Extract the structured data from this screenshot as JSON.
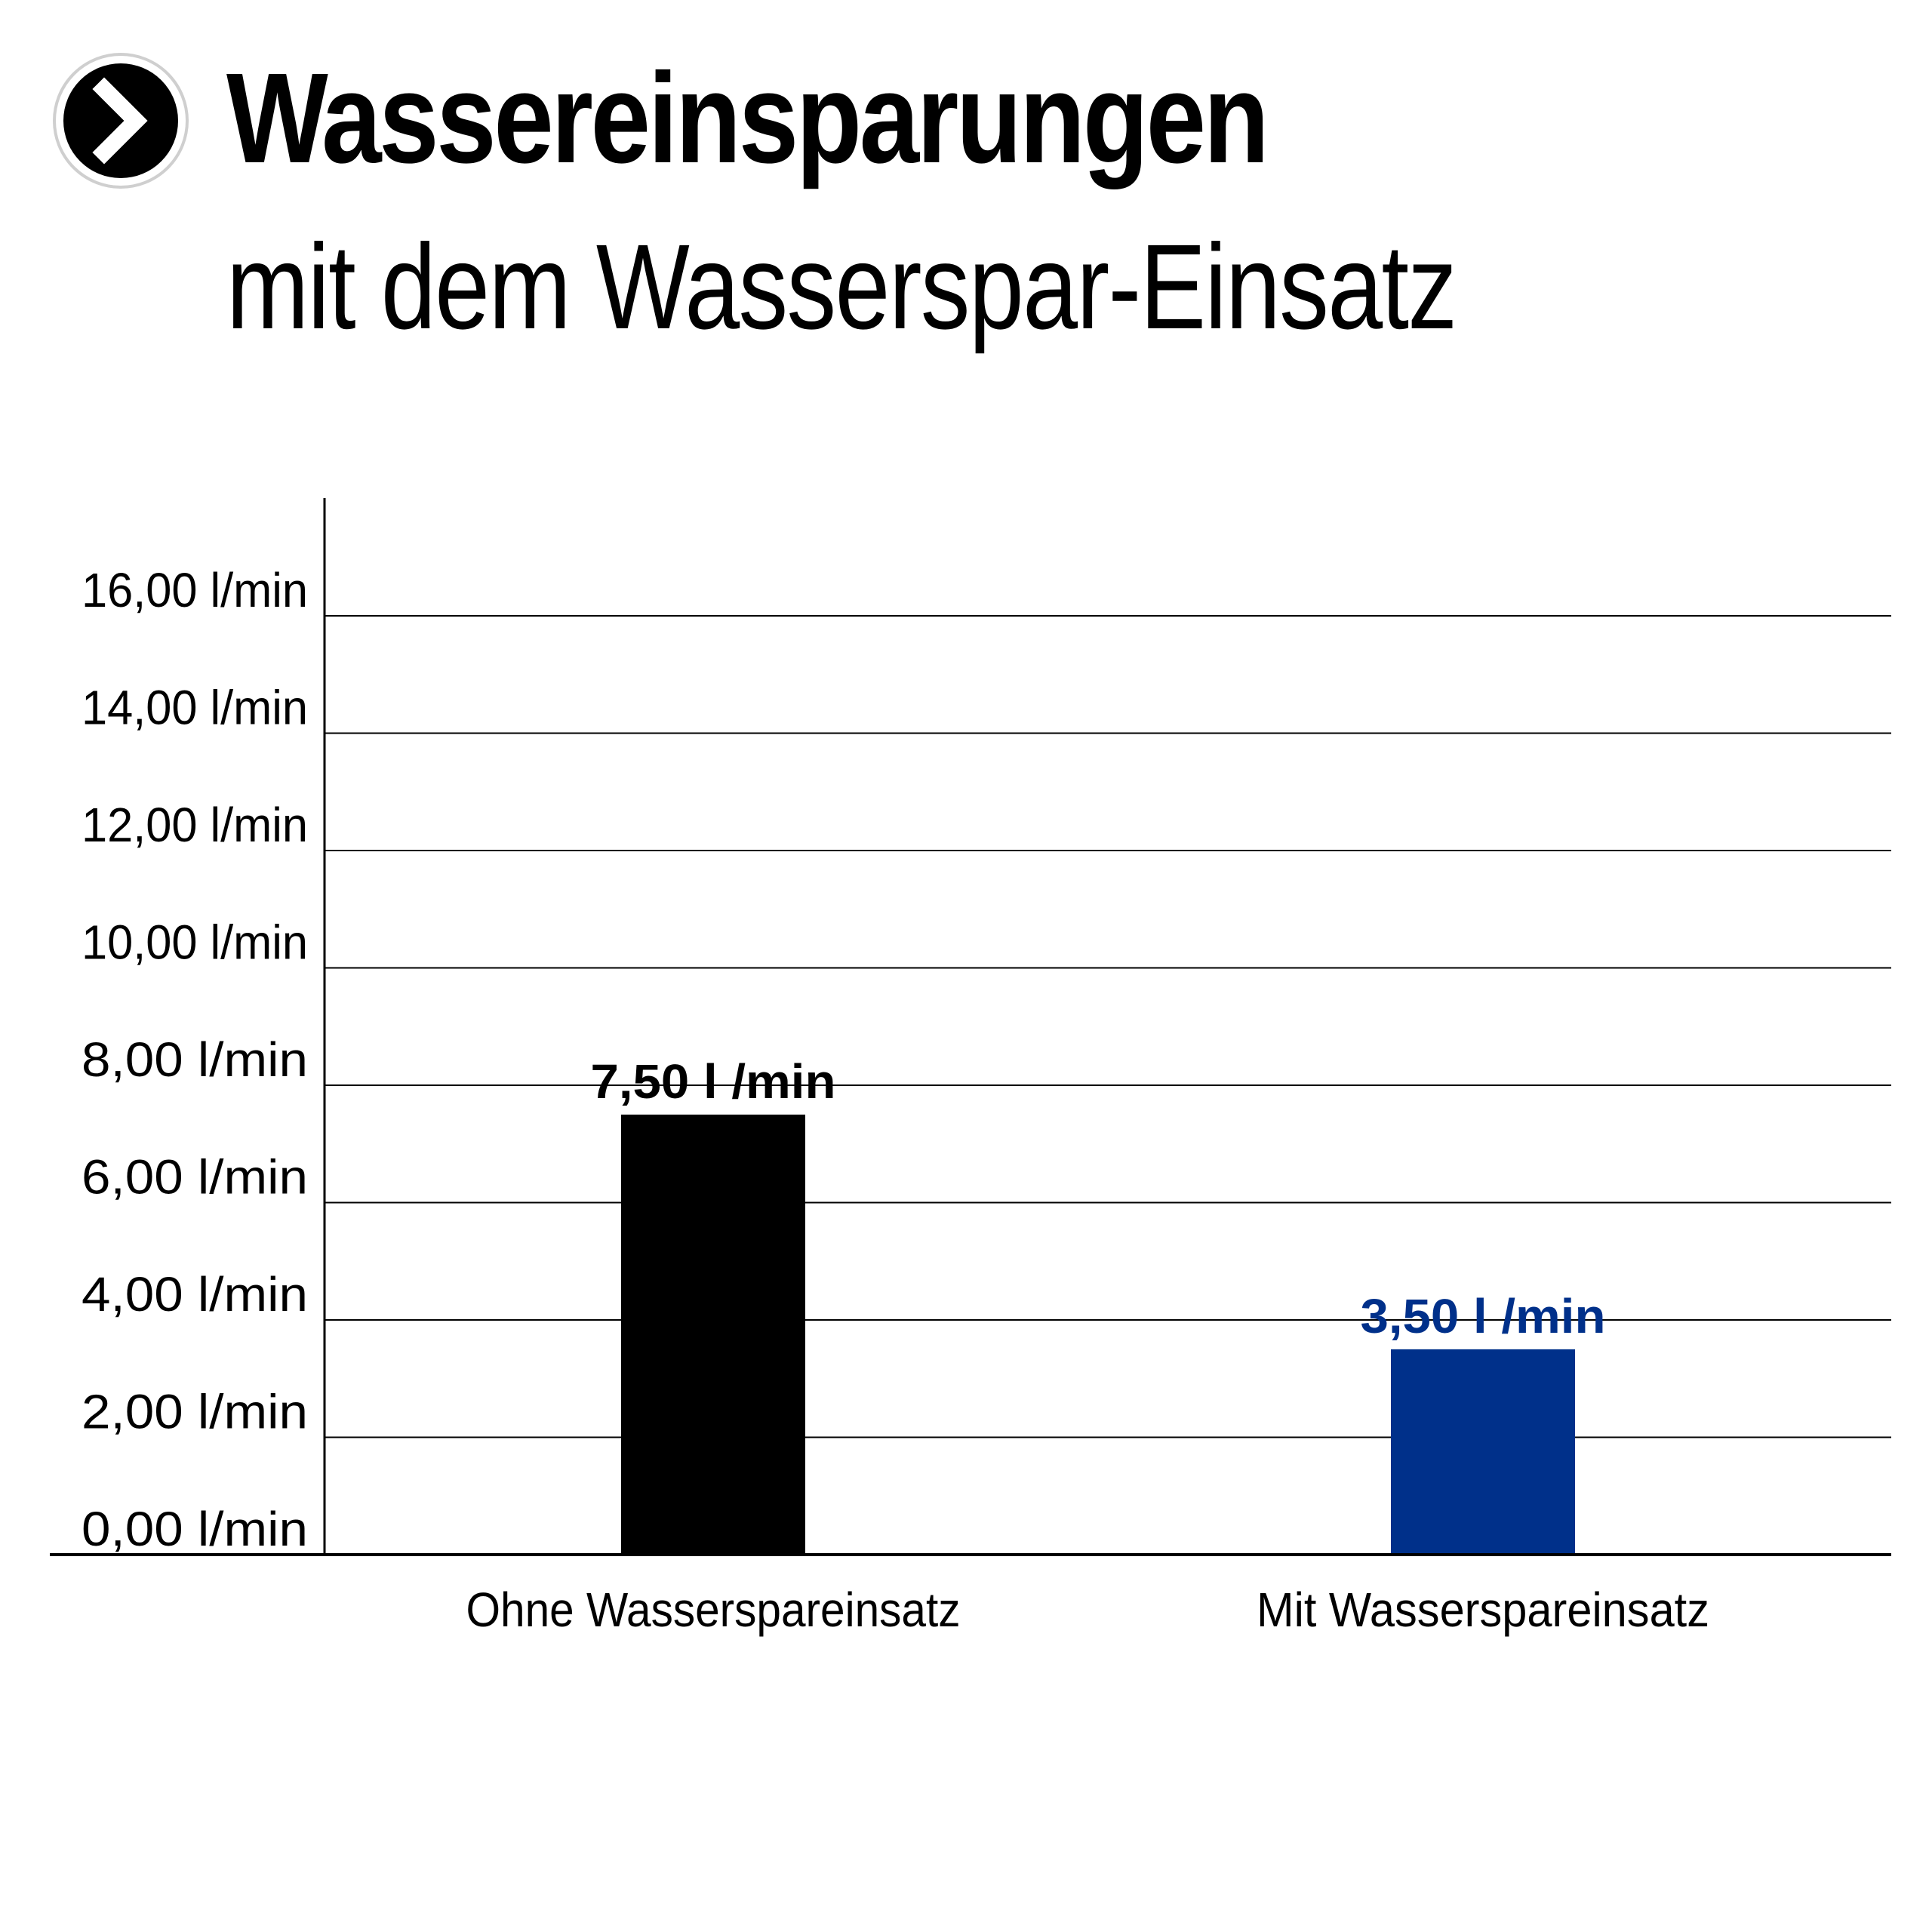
{
  "header": {
    "title": "Wassereinsparungen",
    "subtitle": "mit dem Wasserspar-Einsatz"
  },
  "colors": {
    "bar_without": "#000000",
    "bar_with": "#00308a",
    "label_with": "#00308a",
    "grid": "#000000"
  },
  "icons": {
    "badge": "chevron-right-icon"
  },
  "chart_data": {
    "type": "bar",
    "title": "",
    "xlabel": "",
    "ylabel": "",
    "categories": [
      "Ohne Wasserspareinsatz",
      "Mit Wasserspareinsatz"
    ],
    "values": [
      7.5,
      3.5
    ],
    "data_labels": [
      "7,50 l /min",
      "3,50 l /min"
    ],
    "ylim": [
      0,
      16
    ],
    "ytick_values": [
      0,
      2,
      4,
      6,
      8,
      10,
      12,
      14,
      16
    ],
    "ytick_labels": [
      "0,00 l/min",
      "2,00 l/min",
      "4,00 l/min",
      "6,00 l/min",
      "8,00 l/min",
      "10,00 l/min",
      "12,00 l/min",
      "14,00 l/min",
      "16,00 l/min"
    ],
    "grid": true,
    "legend": "none"
  }
}
